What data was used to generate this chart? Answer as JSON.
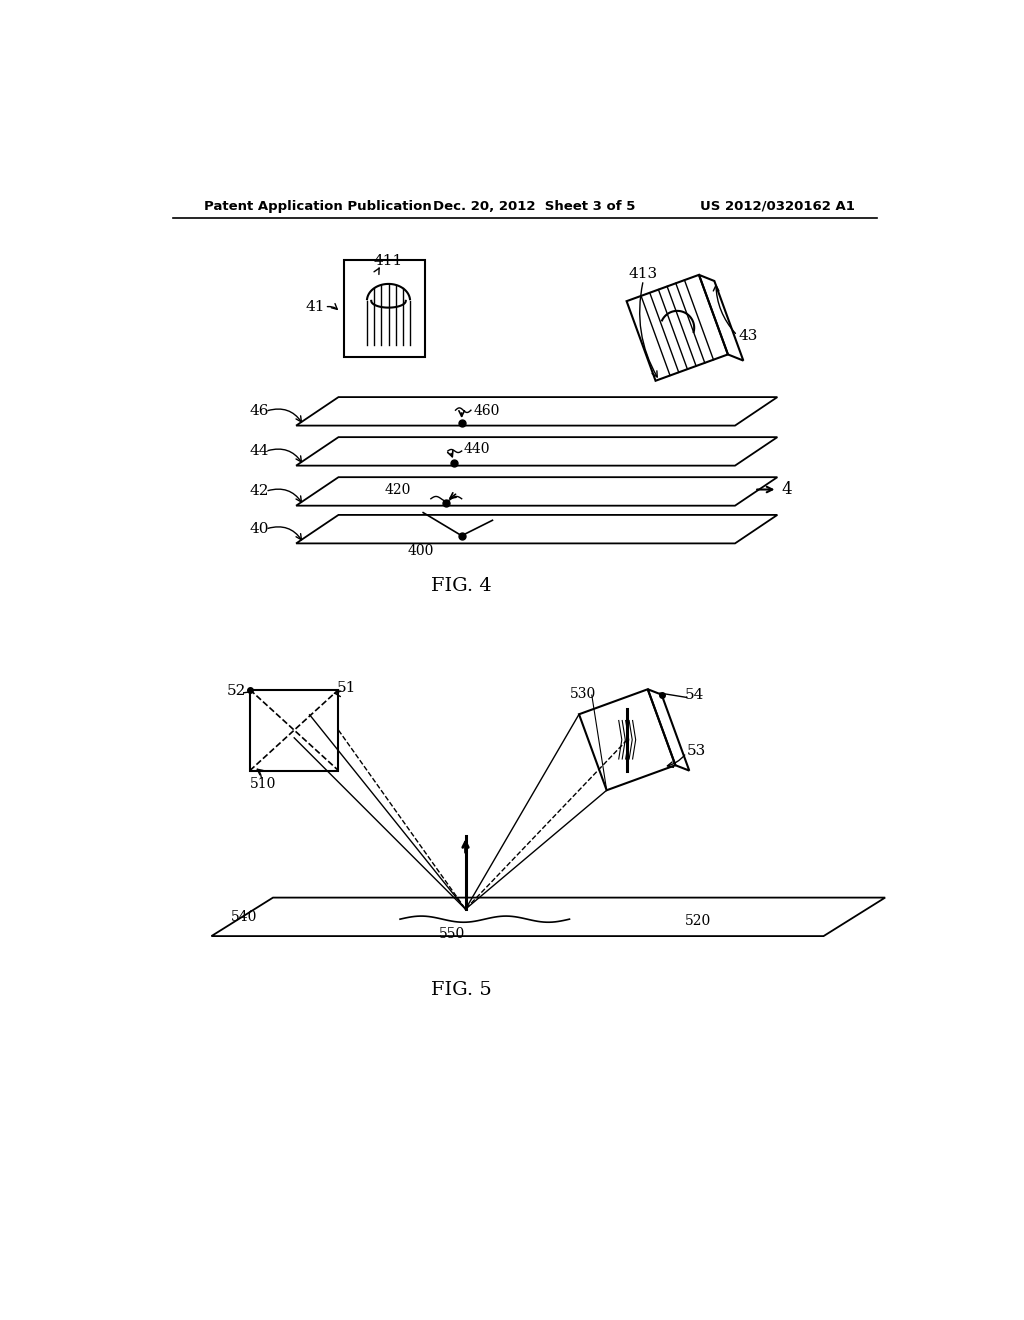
{
  "bg_color": "#ffffff",
  "header_left": "Patent Application Publication",
  "header_mid": "Dec. 20, 2012  Sheet 3 of 5",
  "header_right": "US 2012/0320162 A1",
  "fig4_label": "FIG. 4",
  "fig5_label": "FIG. 5"
}
